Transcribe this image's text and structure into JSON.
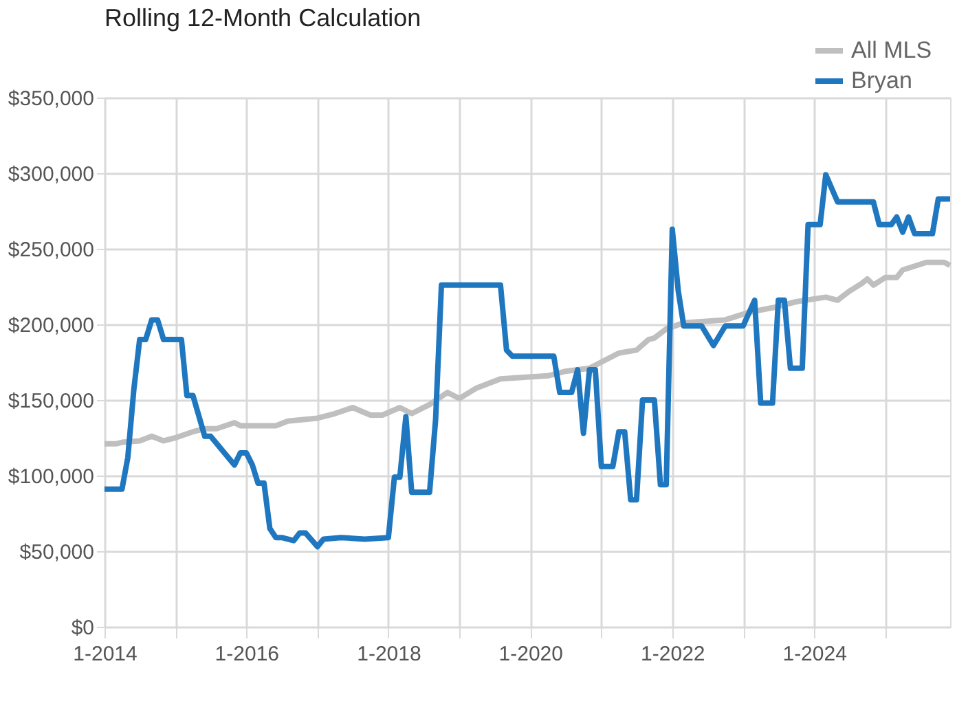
{
  "chart_data": {
    "type": "line",
    "title": "Rolling 12-Month Calculation",
    "xlim": [
      "2014-01",
      "2025-12"
    ],
    "xticks": [
      {
        "value": "2014-01",
        "label": "1-2014"
      },
      {
        "value": "2015-01",
        "label": null
      },
      {
        "value": "2016-01",
        "label": "1-2016"
      },
      {
        "value": "2017-01",
        "label": null
      },
      {
        "value": "2018-01",
        "label": "1-2018"
      },
      {
        "value": "2019-01",
        "label": null
      },
      {
        "value": "2020-01",
        "label": "1-2020"
      },
      {
        "value": "2021-01",
        "label": null
      },
      {
        "value": "2022-01",
        "label": "1-2022"
      },
      {
        "value": "2023-01",
        "label": null
      },
      {
        "value": "2024-01",
        "label": "1-2024"
      },
      {
        "value": "2025-01",
        "label": null
      }
    ],
    "ylim": [
      0,
      350000
    ],
    "yticks": [
      {
        "value": 0,
        "label": "$0"
      },
      {
        "value": 50000,
        "label": "$50,000"
      },
      {
        "value": 100000,
        "label": "$100,000"
      },
      {
        "value": 150000,
        "label": "$150,000"
      },
      {
        "value": 200000,
        "label": "$200,000"
      },
      {
        "value": 250000,
        "label": "$250,000"
      },
      {
        "value": 300000,
        "label": "$300,000"
      },
      {
        "value": 350000,
        "label": "$350,000"
      }
    ],
    "grid": true,
    "legend": "top right",
    "marker": "none",
    "line_style": "solid",
    "series": [
      {
        "name": "All MLS",
        "color": "#bfbfbf",
        "x": [
          "2014-01",
          "2014-03",
          "2014-04",
          "2014-07",
          "2014-09",
          "2014-11",
          "2015-01",
          "2015-04",
          "2015-06",
          "2015-08",
          "2015-11",
          "2015-12",
          "2016-06",
          "2016-08",
          "2017-01",
          "2017-04",
          "2017-07",
          "2017-10",
          "2017-12",
          "2018-03",
          "2018-05",
          "2018-08",
          "2018-11",
          "2019-01",
          "2019-04",
          "2019-08",
          "2019-12",
          "2020-04",
          "2020-07",
          "2020-11",
          "2021-04",
          "2021-07",
          "2021-09",
          "2021-10",
          "2021-12",
          "2022-03",
          "2022-10",
          "2023-02",
          "2023-06",
          "2023-10",
          "2024-03",
          "2024-05",
          "2024-07",
          "2024-09",
          "2024-10",
          "2024-11",
          "2025-01",
          "2025-03",
          "2025-04",
          "2025-08",
          "2025-11",
          "2025-12"
        ],
        "values": [
          121000,
          121000,
          122000,
          123000,
          126000,
          123000,
          125000,
          129000,
          131000,
          131000,
          135000,
          133000,
          133000,
          136000,
          138000,
          141000,
          145000,
          140000,
          140000,
          145000,
          141000,
          147000,
          155000,
          151000,
          158000,
          164000,
          165000,
          166000,
          169000,
          171000,
          181000,
          183000,
          190000,
          191000,
          197000,
          201000,
          203000,
          208000,
          211000,
          215000,
          218000,
          216000,
          222000,
          227000,
          230000,
          226000,
          231000,
          231000,
          236000,
          241000,
          241000,
          239000
        ]
      },
      {
        "name": "Bryan",
        "color": "#1f77c0",
        "x": [
          "2014-01",
          "2014-04",
          "2014-05",
          "2014-06",
          "2014-07",
          "2014-08",
          "2014-09",
          "2014-10",
          "2014-11",
          "2015-02",
          "2015-03",
          "2015-04",
          "2015-06",
          "2015-07",
          "2015-11",
          "2015-12",
          "2016-01",
          "2016-02",
          "2016-03",
          "2016-04",
          "2016-05",
          "2016-06",
          "2016-07",
          "2016-09",
          "2016-10",
          "2016-11",
          "2017-01",
          "2017-02",
          "2017-05",
          "2017-09",
          "2018-01",
          "2018-02",
          "2018-03",
          "2018-04",
          "2018-05",
          "2018-08",
          "2018-09",
          "2018-10",
          "2019-08",
          "2019-09",
          "2019-10",
          "2020-05",
          "2020-06",
          "2020-08",
          "2020-09",
          "2020-10",
          "2020-11",
          "2020-12",
          "2021-01",
          "2021-03",
          "2021-04",
          "2021-05",
          "2021-06",
          "2021-07",
          "2021-08",
          "2021-10",
          "2021-11",
          "2021-12",
          "2022-01",
          "2022-02",
          "2022-03",
          "2022-06",
          "2022-08",
          "2022-10",
          "2023-01",
          "2023-03",
          "2023-04",
          "2023-06",
          "2023-07",
          "2023-08",
          "2023-09",
          "2023-11",
          "2023-12",
          "2024-02",
          "2024-03",
          "2024-05",
          "2024-11",
          "2024-12",
          "2025-02",
          "2025-03",
          "2025-04",
          "2025-05",
          "2025-06",
          "2025-09",
          "2025-10",
          "2025-12"
        ],
        "values": [
          91000,
          91000,
          112000,
          157000,
          190000,
          190000,
          203000,
          203000,
          190000,
          190000,
          153000,
          153000,
          126000,
          126000,
          107000,
          115000,
          115000,
          107000,
          95000,
          95000,
          65000,
          59000,
          59000,
          57000,
          62000,
          62000,
          53000,
          58000,
          59000,
          58000,
          59000,
          99000,
          99000,
          139000,
          89000,
          89000,
          137000,
          226000,
          226000,
          183000,
          179000,
          179000,
          155000,
          155000,
          170000,
          128000,
          170000,
          170000,
          106000,
          106000,
          129000,
          129000,
          84000,
          84000,
          150000,
          150000,
          94000,
          94000,
          263000,
          222000,
          199000,
          199000,
          186000,
          199000,
          199000,
          216000,
          148000,
          148000,
          216000,
          216000,
          171000,
          171000,
          266000,
          266000,
          299000,
          281000,
          281000,
          266000,
          266000,
          271000,
          261000,
          271000,
          260000,
          260000,
          283000,
          283000
        ]
      }
    ]
  }
}
